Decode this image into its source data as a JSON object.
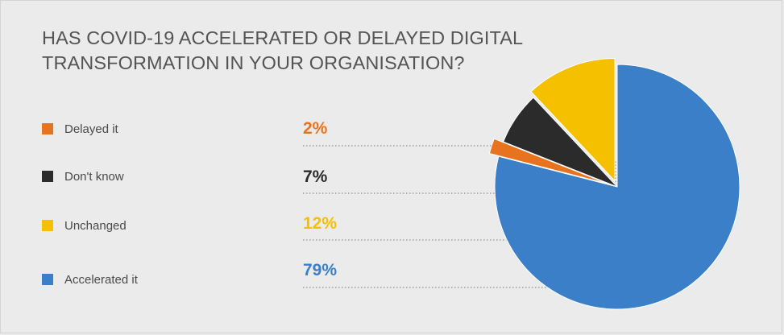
{
  "title_lines": [
    "HAS COVID-19 ACCELERATED OR DELAYED DIGITAL",
    "TRANSFORMATION IN YOUR ORGANISATION?"
  ],
  "chart_data": {
    "type": "pie",
    "title": "HAS COVID-19 ACCELERATED OR DELAYED DIGITAL TRANSFORMATION IN YOUR ORGANISATION?",
    "slices": [
      {
        "label": "Delayed it",
        "value": 2,
        "display": "2%",
        "color": "#e8731e"
      },
      {
        "label": "Don't know",
        "value": 7,
        "display": "7%",
        "color": "#2b2b2b"
      },
      {
        "label": "Unchanged",
        "value": 12,
        "display": "12%",
        "color": "#f5c000"
      },
      {
        "label": "Accelerated it",
        "value": 79,
        "display": "79%",
        "color": "#3a7fc8"
      }
    ],
    "legend_placement": "left"
  }
}
